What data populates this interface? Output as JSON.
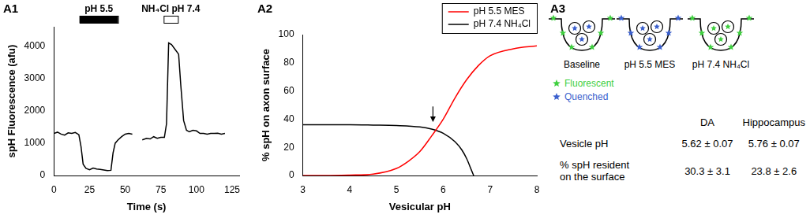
{
  "chart_data": [
    {
      "panel": "A1",
      "type": "line",
      "x_label": "Time (s)",
      "y_label": "spH Fluorescence (afu)",
      "xlim": [
        0,
        130
      ],
      "xticks": [
        0,
        25,
        50,
        75,
        100,
        125
      ],
      "ylim": [
        0,
        4600
      ],
      "yticks": [
        0,
        1000,
        2000,
        3000,
        4000
      ],
      "grid": false,
      "series": [
        {
          "color": "#000000",
          "x": [
            0,
            2.5,
            5,
            7.5,
            10,
            12.5,
            15,
            17.5,
            19,
            20.5,
            22.5,
            25,
            27.5,
            30,
            32.5,
            35,
            37.5,
            40,
            41.5,
            43,
            45,
            47.5,
            50,
            52.5,
            55,
            58,
            62,
            65,
            67.5,
            70,
            72.5,
            75,
            77.5,
            79,
            80.5,
            82.5,
            85,
            87.5,
            89,
            91,
            93,
            95,
            97.5,
            100,
            102.5,
            105,
            107.5,
            110,
            112.5,
            115,
            117.5,
            120
          ],
          "values": [
            1300,
            1340,
            1280,
            1250,
            1320,
            1300,
            1330,
            1260,
            900,
            350,
            220,
            180,
            230,
            200,
            190,
            170,
            150,
            160,
            700,
            1000,
            1100,
            1200,
            1280,
            1300,
            1280,
            null,
            1100,
            1150,
            1130,
            1200,
            1150,
            1180,
            1180,
            1600,
            4100,
            4050,
            3900,
            3750,
            2800,
            1700,
            1400,
            1350,
            1400,
            1380,
            1300,
            1300,
            1280,
            1300,
            1300,
            1310,
            1280,
            1300
          ]
        }
      ],
      "annotations": [
        {
          "text": "pH 5.5",
          "x": [
            18,
            45
          ],
          "color": "#000000"
        },
        {
          "text": "NH₄Cl pH 7.4",
          "x": [
            77,
            87
          ],
          "color": "#ffffff"
        }
      ]
    },
    {
      "panel": "A2",
      "type": "line",
      "x_label": "Vesicular pH",
      "y_label": "% spH on axon surface",
      "xlim": [
        3,
        8
      ],
      "xticks": [
        3,
        4,
        5,
        6,
        7,
        8
      ],
      "ylim": [
        0,
        100
      ],
      "yticks": [
        0,
        20,
        40,
        60,
        80,
        100
      ],
      "grid": false,
      "legend": "top right",
      "series": [
        {
          "name": "pH 5.5 MES",
          "color": "#ff0000",
          "x": [
            3,
            3.5,
            4,
            4.5,
            5,
            5.25,
            5.5,
            5.75,
            6,
            6.25,
            6.5,
            6.75,
            7,
            7.5,
            8
          ],
          "values": [
            0,
            0,
            0.3,
            1,
            5,
            10,
            17,
            28,
            40,
            55,
            68,
            78,
            85,
            90,
            92
          ]
        },
        {
          "name": "pH 7.4 NH₄Cl",
          "color": "#000000",
          "x": [
            3,
            3.5,
            4,
            4.5,
            5,
            5.5,
            5.75,
            6,
            6.25,
            6.4,
            6.5,
            6.6,
            6.65
          ],
          "values": [
            36,
            36,
            36,
            35.8,
            35.5,
            34.5,
            33,
            30,
            24,
            18,
            12,
            4,
            0
          ]
        }
      ],
      "arrow": {
        "x": 5.78,
        "y": [
          49,
          38
        ]
      }
    }
  ],
  "panel_a3": {
    "label": "A3",
    "states": [
      {
        "label": "Baseline",
        "surface": "Fluorescent",
        "vesicles": "Quenched"
      },
      {
        "label": "pH 5.5 MES",
        "surface": "Quenched",
        "vesicles": "Quenched"
      },
      {
        "label": "pH 7.4 NH₄Cl",
        "surface": "Fluorescent",
        "vesicles": "Fluorescent"
      }
    ],
    "key": [
      {
        "label": "Fluorescent",
        "color": "#3fcf3f"
      },
      {
        "label": "Quenched",
        "color": "#3a5fcd"
      }
    ],
    "table": {
      "columns": [
        "DA",
        "Hippocampus"
      ],
      "rows": [
        {
          "label": [
            "Vesicle pH"
          ],
          "cells": [
            "5.62 ± 0.07",
            "5.76 ± 0.07"
          ]
        },
        {
          "label": [
            "% spH resident",
            "on the surface"
          ],
          "cells": [
            "30.3 ± 3.1",
            "23.8 ± 2.6"
          ]
        }
      ]
    }
  }
}
